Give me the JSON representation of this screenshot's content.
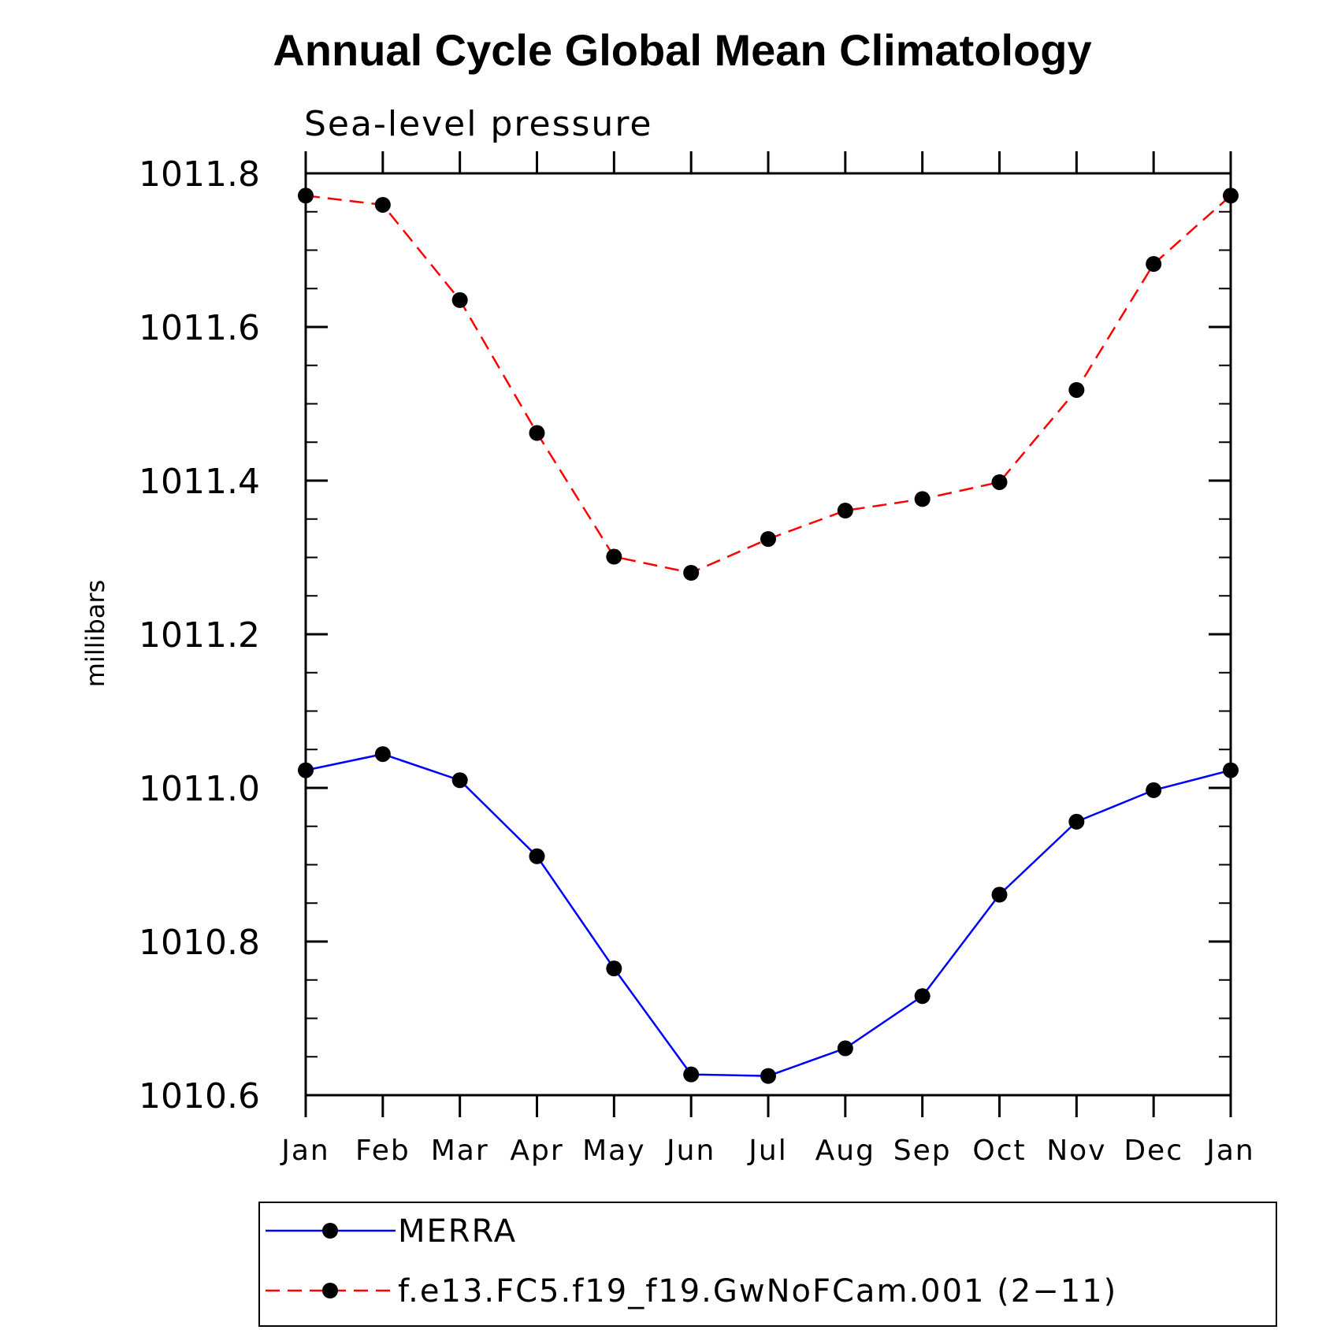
{
  "chart_data": {
    "type": "line",
    "title": "Annual Cycle Global Mean Climatology",
    "subtitle": "Sea-level pressure",
    "xlabel": "",
    "ylabel": "millibars",
    "categories": [
      "Jan",
      "Feb",
      "Mar",
      "Apr",
      "May",
      "Jun",
      "Jul",
      "Aug",
      "Sep",
      "Oct",
      "Nov",
      "Dec",
      "Jan"
    ],
    "yticks": [
      "1010.6",
      "1010.8",
      "1011.0",
      "1011.2",
      "1011.4",
      "1011.6",
      "1011.8"
    ],
    "ylim": [
      1010.6,
      1011.8
    ],
    "grid": false,
    "legend_position": "bottom",
    "series": [
      {
        "name": "MERRA",
        "color": "#0000ff",
        "dashed": false,
        "marker": "filled-circle",
        "values": [
          1011.023,
          1011.044,
          1011.01,
          1010.911,
          1010.765,
          1010.627,
          1010.625,
          1010.661,
          1010.729,
          1010.861,
          1010.956,
          1010.997,
          1011.023
        ]
      },
      {
        "name": "f.e13.FC5.f19_f19.GwNoFCam.001 (2−11)",
        "color": "#ff0000",
        "dashed": true,
        "marker": "filled-circle",
        "values": [
          1011.771,
          1011.759,
          1011.635,
          1011.462,
          1011.301,
          1011.28,
          1011.324,
          1011.361,
          1011.376,
          1011.398,
          1011.518,
          1011.682,
          1011.771
        ]
      }
    ]
  }
}
